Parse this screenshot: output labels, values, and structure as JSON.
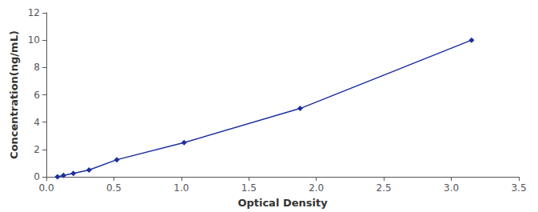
{
  "chart_data": {
    "type": "line",
    "xlabel": "Optical Density",
    "ylabel": "Concentration(ng/mL)",
    "x": [
      0.082,
      0.127,
      0.2,
      0.316,
      0.522,
      1.02,
      1.88,
      3.15
    ],
    "values": [
      0.0,
      0.1,
      0.25,
      0.5,
      1.25,
      2.5,
      5.0,
      10.0
    ],
    "color": "#1c2f9e",
    "marker": "diamond",
    "line_style": "solid",
    "xlim": [
      0,
      3.5
    ],
    "ylim": [
      0,
      12
    ],
    "xticks": [
      {
        "value": 0,
        "label": "0.0"
      },
      0.5,
      {
        "value": 1.0,
        "label": "1.0"
      },
      1.5,
      {
        "value": 2.0,
        "label": "2.0"
      },
      2.5,
      {
        "value": 3.0,
        "label": "3.0"
      },
      3.5
    ],
    "yticks": [
      0,
      2,
      4,
      6,
      8,
      10,
      12
    ],
    "grid": false
  }
}
